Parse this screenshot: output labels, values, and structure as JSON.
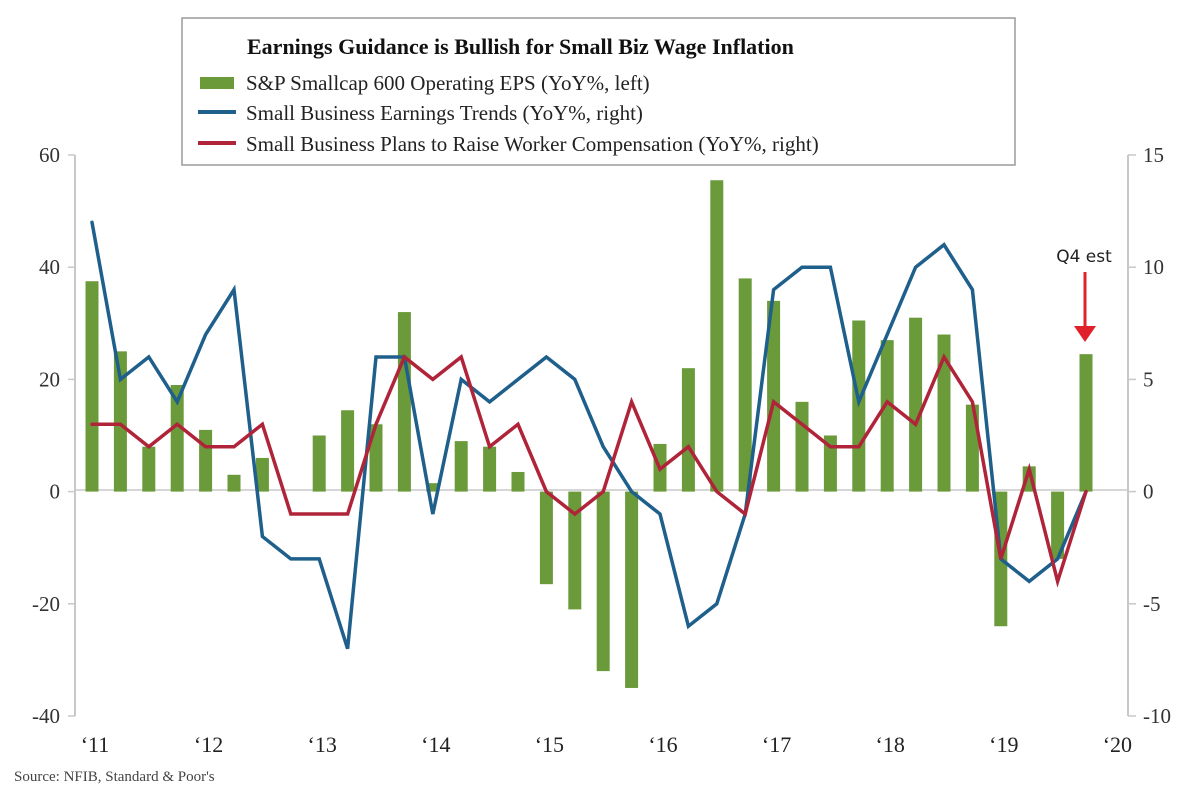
{
  "chart_data": {
    "type": "bar",
    "title": "Earnings Guidance is Bullish for Small Biz Wage Inflation",
    "xlabel": "",
    "ylabel_left": "",
    "ylabel_right": "",
    "x_tick_labels": [
      "‘11",
      "‘12",
      "‘13",
      "‘14",
      "‘15",
      "‘16",
      "‘17",
      "‘18",
      "‘19",
      "‘20"
    ],
    "frequency": "quarterly",
    "x": [
      "Q1'11",
      "Q2'11",
      "Q3'11",
      "Q4'11",
      "Q1'12",
      "Q2'12",
      "Q3'12",
      "Q4'12",
      "Q1'13",
      "Q2'13",
      "Q3'13",
      "Q4'13",
      "Q1'14",
      "Q2'14",
      "Q3'14",
      "Q4'14",
      "Q1'15",
      "Q2'15",
      "Q3'15",
      "Q4'15",
      "Q1'16",
      "Q2'16",
      "Q3'16",
      "Q4'16",
      "Q1'17",
      "Q2'17",
      "Q3'17",
      "Q4'17",
      "Q1'18",
      "Q2'18",
      "Q3'18",
      "Q4'18",
      "Q1'19",
      "Q2'19",
      "Q3'19",
      "Q4'19"
    ],
    "y_left": {
      "ticks": [
        60,
        40,
        20,
        0,
        -20,
        -40
      ],
      "range": [
        -40,
        60
      ]
    },
    "y_right": {
      "ticks": [
        15,
        10,
        5,
        0,
        -5,
        -10
      ],
      "range": [
        -10,
        15
      ]
    },
    "grid": false,
    "legend_position": "top-center",
    "series": [
      {
        "name": "S&P Smallcap 600 Operating EPS (YoY%, left)",
        "type": "bar",
        "axis": "left",
        "color": "#6a9a3a",
        "values": [
          37.5,
          25,
          8,
          19,
          11,
          3,
          6,
          0,
          10,
          14.5,
          12,
          32,
          1.5,
          9,
          8,
          3.5,
          -16.5,
          -21,
          -32,
          -35,
          8.5,
          22,
          55.5,
          38,
          34,
          16,
          10,
          30.5,
          27,
          31,
          28,
          15.5,
          -24,
          4.5,
          -12,
          24.5
        ]
      },
      {
        "name": "Small Business Earnings Trends (YoY%, right)",
        "type": "line",
        "axis": "right",
        "color": "#1f5f8b",
        "values": [
          12,
          5,
          6,
          4,
          7,
          9,
          -2,
          -3,
          -3,
          -7,
          6,
          6,
          -1,
          5,
          4,
          5,
          6,
          5,
          2,
          0,
          -1,
          -6,
          -5,
          -1,
          9,
          10,
          10,
          4,
          7,
          10,
          11,
          9,
          -3,
          -4,
          -3,
          0
        ]
      },
      {
        "name": "Small Business Plans to Raise Worker Compensation (YoY%, right)",
        "type": "line",
        "axis": "right",
        "color": "#b0243a",
        "values": [
          3,
          3,
          2,
          3,
          2,
          2,
          3,
          -1,
          -1,
          -1,
          3,
          6,
          5,
          6,
          2,
          3,
          0,
          -1,
          0,
          4,
          1,
          2,
          0,
          -1,
          4,
          3,
          2,
          2,
          4,
          3,
          6,
          4,
          -3,
          1,
          -4,
          0
        ]
      }
    ],
    "annotations": [
      {
        "text": "Q4 est",
        "target": "Q4'19",
        "arrow_color": "#e0202a"
      }
    ],
    "source": "Source: NFIB, Standard & Poor's"
  },
  "colors": {
    "bar": "#6a9a3a",
    "blue_line": "#1f5f8b",
    "red_line": "#b0243a",
    "arrow": "#e0202a",
    "axis": "#c8c8c8"
  }
}
